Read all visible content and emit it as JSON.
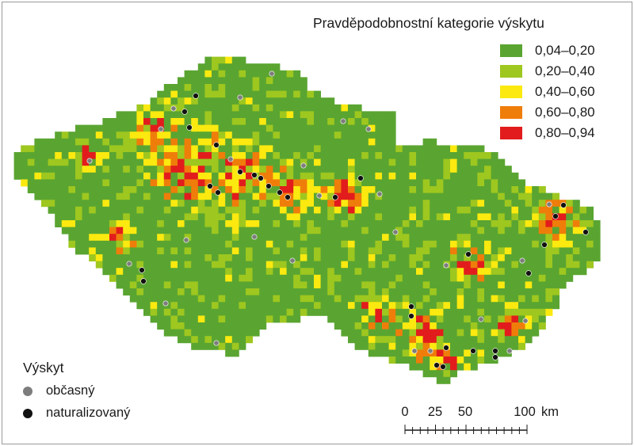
{
  "legend": {
    "title": "Pravděpodobnostní kategorie výskytu",
    "categories": [
      {
        "label": "0,04–0,20",
        "color": "#5aa531"
      },
      {
        "label": "0,20–0,40",
        "color": "#9ec71f"
      },
      {
        "label": "0,40–0,60",
        "color": "#fbe90f"
      },
      {
        "label": "0,60–0,80",
        "color": "#ef7d0a"
      },
      {
        "label": "0,80–0,94",
        "color": "#e21c1c"
      }
    ]
  },
  "occurrence": {
    "title": "Výskyt",
    "items": [
      {
        "label": "občasný",
        "color": "#7d7d7d"
      },
      {
        "label": "naturalizovaný",
        "color": "#111111"
      }
    ]
  },
  "scale_bar": {
    "labels": [
      "0",
      "25",
      "50",
      "100"
    ],
    "unit": "km"
  }
}
